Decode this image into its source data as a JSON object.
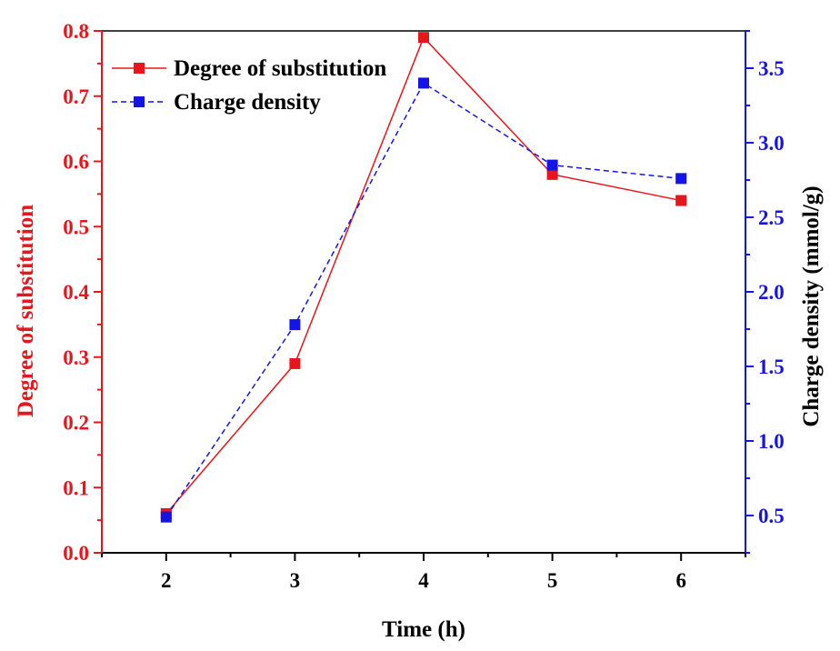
{
  "chart_data": {
    "type": "line",
    "xlabel": "Time (h)",
    "ylabel_left": "Degree of substitution",
    "ylabel_right": "Charge density (mmol/g)",
    "x": [
      2,
      3,
      4,
      5,
      6
    ],
    "xlim": [
      1.5,
      6.5
    ],
    "xticks": [
      "2",
      "3",
      "4",
      "5",
      "6"
    ],
    "ylim_left": [
      0,
      0.8
    ],
    "yticks_left": [
      "0.0",
      "0.1",
      "0.2",
      "0.3",
      "0.4",
      "0.5",
      "0.6",
      "0.7",
      "0.8"
    ],
    "ylim_right": [
      0.25,
      3.75
    ],
    "yticks_right": [
      "0.5",
      "1.0",
      "1.5",
      "2.0",
      "2.5",
      "3.0",
      "3.5"
    ],
    "legend_position": "top-left",
    "series": [
      {
        "name": "Degree of substitution",
        "axis": "left",
        "values": [
          0.06,
          0.29,
          0.79,
          0.58,
          0.54
        ],
        "color": "#e8161b",
        "line": "solid",
        "marker": "square"
      },
      {
        "name": "Charge density",
        "axis": "right",
        "values": [
          0.49,
          1.78,
          3.4,
          2.85,
          2.76
        ],
        "color": "#1414e6",
        "line": "dashed",
        "marker": "square"
      }
    ],
    "axis_colors": {
      "left": "#e8161b",
      "right": "#1414e6",
      "bottom": "#000000"
    }
  }
}
